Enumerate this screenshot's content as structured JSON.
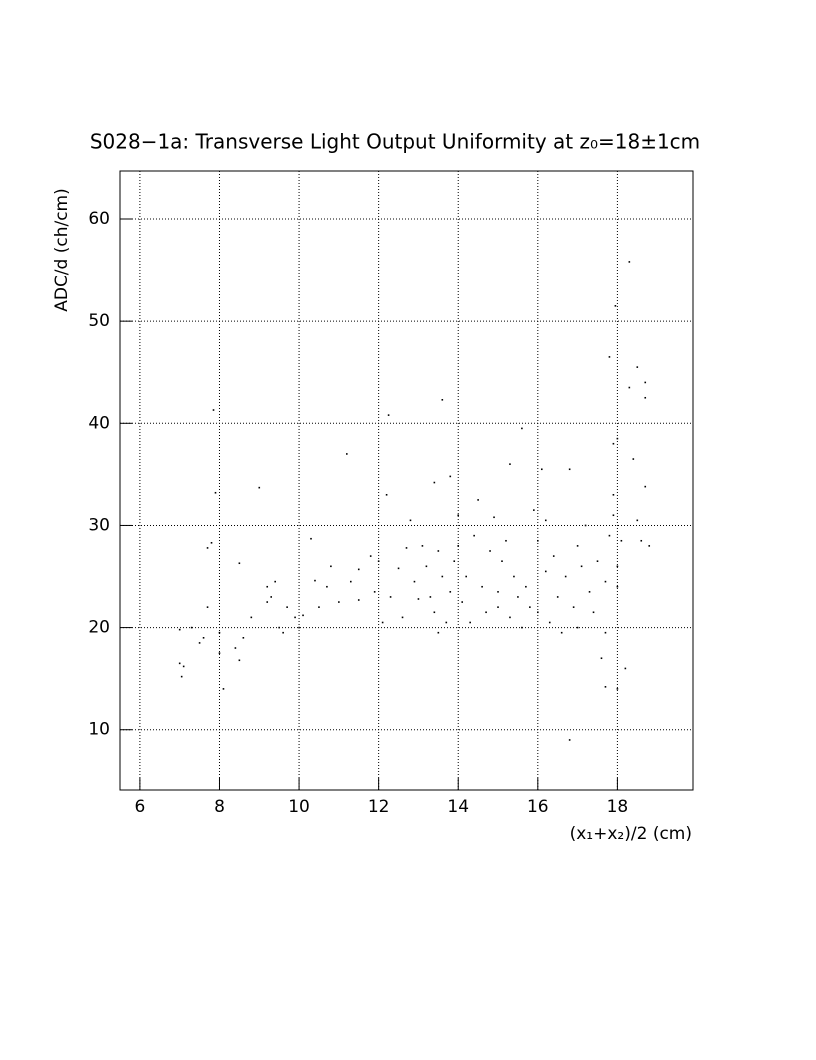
{
  "chart_data": {
    "type": "scatter",
    "title": "S028−1a: Transverse Light Output Uniformity at z₀=18±1cm",
    "x_label": "(x₁+x₂)/2 (cm)",
    "y_label": "ADC/d (ch/cm)",
    "color": "#000000",
    "grid": true,
    "xlim": [
      5.5,
      19.9
    ],
    "ylim": [
      4.1,
      64.7
    ],
    "xticks": [
      6,
      8,
      10,
      12,
      14,
      16,
      18
    ],
    "yticks": [
      10,
      20,
      30,
      40,
      50,
      60
    ],
    "x": [
      7.0,
      7.05,
      7.1,
      7.0,
      7.3,
      7.5,
      7.6,
      7.7,
      7.7,
      7.8,
      7.85,
      7.9,
      8.0,
      8.0,
      8.1,
      8.4,
      8.5,
      8.5,
      8.6,
      8.8,
      9.0,
      9.2,
      9.2,
      9.3,
      9.4,
      9.5,
      9.6,
      9.7,
      9.9,
      10.0,
      10.1,
      10.3,
      10.4,
      10.5,
      10.7,
      10.8,
      11.0,
      11.2,
      11.3,
      11.5,
      11.5,
      11.8,
      11.9,
      12.0,
      12.1,
      12.2,
      12.25,
      12.3,
      12.5,
      12.6,
      12.7,
      12.8,
      12.9,
      13.0,
      13.1,
      13.2,
      13.3,
      13.4,
      13.4,
      13.5,
      13.5,
      13.6,
      13.6,
      13.7,
      13.8,
      13.8,
      13.9,
      14.0,
      14.0,
      14.1,
      14.2,
      14.3,
      14.4,
      14.5,
      14.6,
      14.7,
      14.8,
      14.9,
      15.0,
      15.0,
      15.1,
      15.2,
      15.3,
      15.3,
      15.4,
      15.5,
      15.6,
      15.6,
      15.7,
      15.8,
      15.9,
      16.0,
      16.0,
      16.1,
      16.2,
      16.2,
      16.3,
      16.4,
      16.5,
      16.6,
      16.7,
      16.8,
      16.8,
      16.9,
      17.0,
      17.0,
      17.1,
      17.2,
      17.3,
      17.4,
      17.5,
      17.6,
      17.7,
      17.7,
      17.7,
      17.8,
      17.8,
      17.9,
      17.9,
      18.0,
      18.0,
      18.0,
      18.0,
      18.1,
      18.2,
      18.3,
      18.3,
      18.4,
      18.5,
      18.5,
      18.6,
      18.7,
      18.7,
      18.7,
      18.8,
      17.95,
      17.9
    ],
    "values": [
      16.5,
      15.2,
      16.2,
      19.8,
      20.0,
      18.5,
      19.0,
      22.0,
      27.8,
      28.3,
      41.3,
      33.2,
      19.5,
      17.5,
      14.0,
      18.0,
      16.8,
      26.3,
      19.0,
      21.0,
      33.7,
      22.5,
      24.0,
      23.0,
      24.5,
      20.0,
      19.5,
      22.0,
      21.0,
      20.0,
      21.2,
      28.7,
      24.6,
      22.0,
      24.0,
      26.0,
      22.5,
      37.0,
      24.5,
      25.7,
      22.7,
      27.0,
      23.5,
      26.5,
      20.5,
      33.0,
      40.8,
      23.0,
      25.8,
      21.0,
      27.8,
      30.5,
      24.5,
      22.8,
      28.0,
      26.0,
      23.0,
      21.5,
      34.2,
      19.5,
      27.5,
      42.3,
      25.0,
      20.5,
      34.8,
      23.5,
      26.5,
      28.0,
      31.0,
      22.5,
      25.0,
      20.5,
      29.0,
      32.5,
      24.0,
      21.5,
      27.5,
      30.8,
      23.5,
      22.0,
      26.5,
      28.5,
      36.0,
      21.0,
      25.0,
      23.0,
      39.5,
      20.0,
      24.0,
      22.0,
      31.5,
      28.5,
      21.5,
      35.5,
      30.5,
      25.5,
      20.5,
      27.0,
      23.0,
      19.5,
      25.0,
      35.5,
      9.0,
      22.0,
      28.0,
      20.0,
      26.0,
      30.0,
      23.5,
      21.5,
      26.5,
      17.0,
      14.2,
      19.5,
      24.5,
      46.5,
      29.0,
      31.0,
      33.0,
      26.0,
      38.5,
      14.0,
      24.0,
      28.5,
      16.0,
      43.5,
      55.8,
      36.5,
      45.5,
      30.5,
      28.5,
      44.0,
      33.8,
      42.5,
      28.0,
      51.5,
      38.0
    ]
  }
}
